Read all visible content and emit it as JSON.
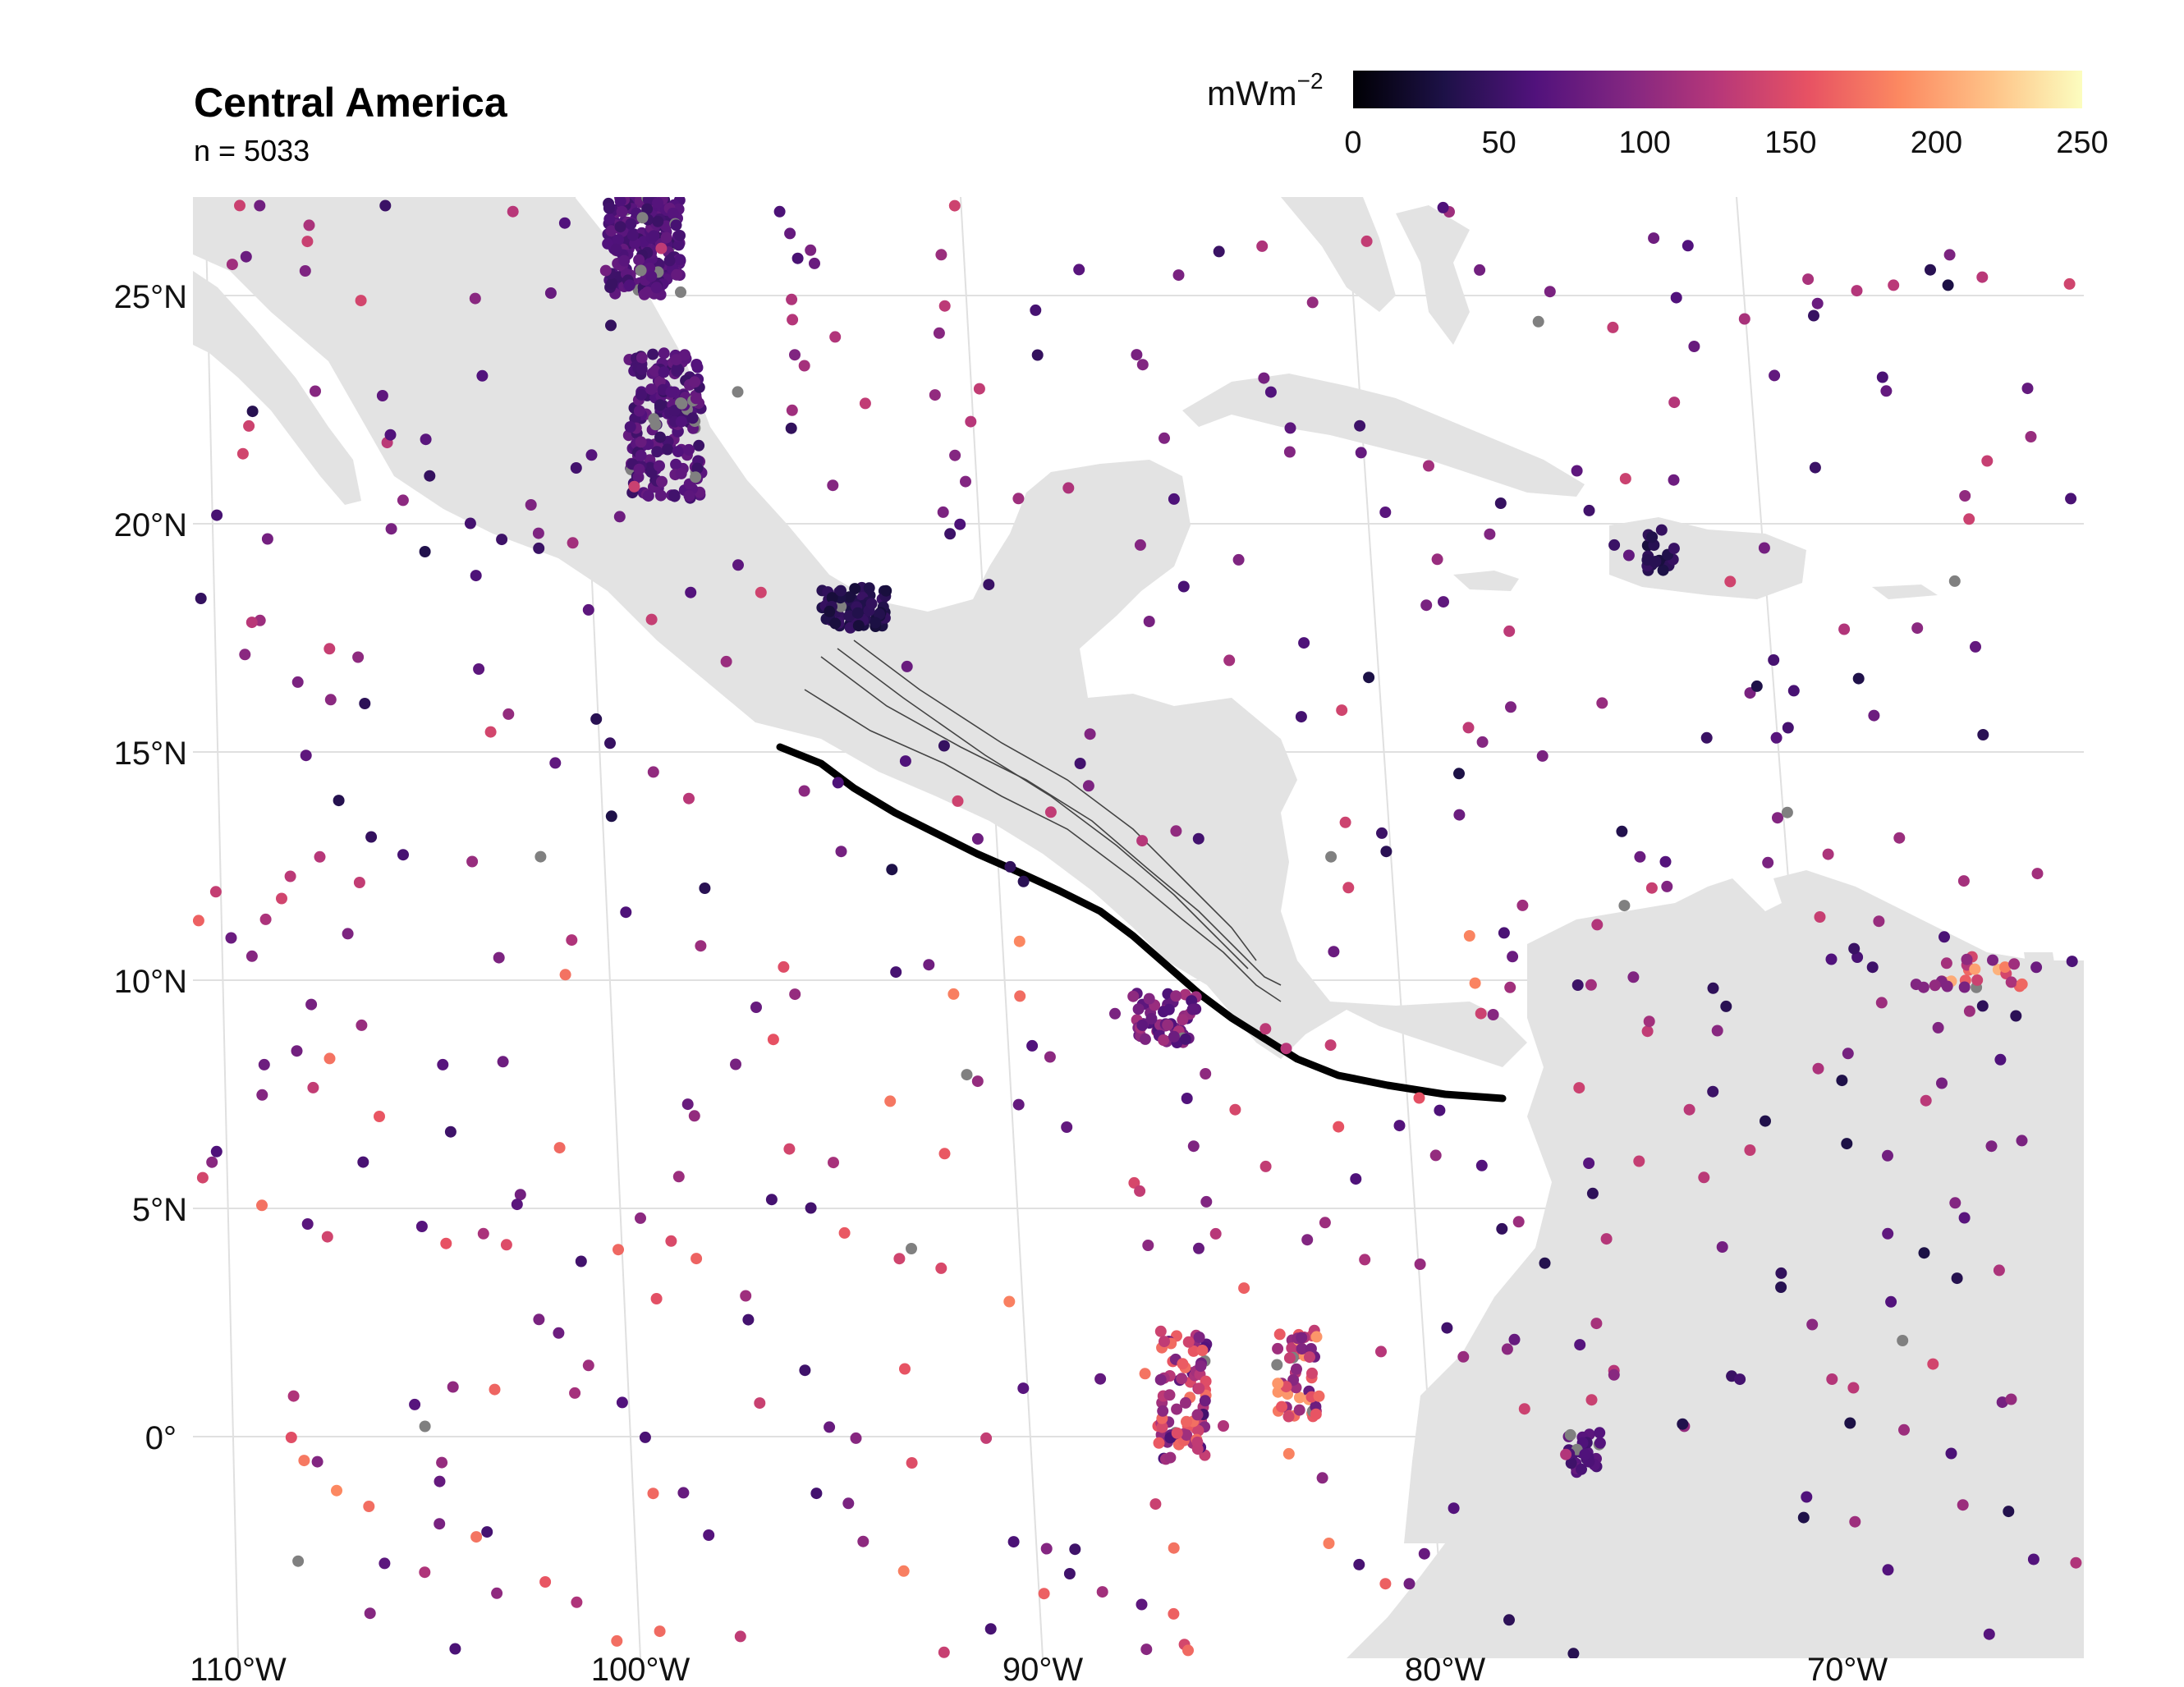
{
  "title": "Central America",
  "subtitle": "n = 5033",
  "legend": {
    "unit_base": "mWm",
    "unit_exp": "−2",
    "ticks": [
      "0",
      "50",
      "100",
      "150",
      "200",
      "250"
    ],
    "range": [
      0,
      250
    ],
    "colormap": [
      "#000004",
      "#1d1147",
      "#51127c",
      "#822681",
      "#b73779",
      "#e75263",
      "#fc8961",
      "#fec287",
      "#fcfdbf"
    ]
  },
  "axes": {
    "lon_labels": [
      "110°W",
      "100°W",
      "90°W",
      "80°W",
      "70°W"
    ],
    "lat_labels": [
      "25°N",
      "20°N",
      "15°N",
      "10°N",
      "5°N",
      "0°"
    ]
  },
  "colors": {
    "land": "#e3e3e3",
    "trench": "#000000",
    "missing": "#808080",
    "grid": "#d9d9d9"
  }
}
